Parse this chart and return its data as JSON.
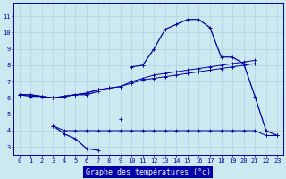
{
  "x": [
    0,
    1,
    2,
    3,
    4,
    5,
    6,
    7,
    8,
    9,
    10,
    11,
    12,
    13,
    14,
    15,
    16,
    17,
    18,
    19,
    20,
    21,
    22,
    23
  ],
  "line1": [
    6.2,
    6.1,
    6.1,
    6.0,
    6.1,
    6.2,
    6.2,
    6.4,
    null,
    null,
    7.9,
    8.0,
    9.0,
    10.2,
    10.5,
    10.8,
    10.8,
    10.3,
    8.5,
    8.5,
    8.1,
    6.1,
    4.0,
    3.7
  ],
  "line2": [
    6.2,
    6.2,
    6.1,
    6.0,
    6.1,
    6.2,
    6.3,
    6.5,
    6.6,
    6.7,
    7.0,
    7.2,
    7.4,
    7.5,
    7.6,
    7.7,
    7.8,
    7.9,
    8.0,
    8.1,
    8.2,
    8.3,
    null,
    null
  ],
  "line3": [
    6.2,
    6.2,
    6.1,
    6.0,
    6.1,
    6.2,
    6.3,
    6.5,
    6.6,
    6.7,
    6.9,
    7.1,
    7.2,
    7.3,
    7.4,
    7.5,
    7.6,
    7.7,
    7.8,
    7.9,
    8.0,
    8.1,
    null,
    null
  ],
  "line4_seg1_x": [
    3,
    4,
    5,
    6,
    7
  ],
  "line4_seg1_y": [
    4.3,
    3.8,
    3.5,
    2.9,
    2.8
  ],
  "line4_seg2_x": [
    9
  ],
  "line4_seg2_y": [
    4.7
  ],
  "line5_x": [
    3,
    4,
    5,
    6,
    7,
    8,
    9,
    10,
    11,
    12,
    13,
    14,
    15,
    16,
    17,
    18,
    19,
    20,
    21,
    22,
    23
  ],
  "line5_y": [
    4.3,
    4.0,
    4.0,
    4.0,
    4.0,
    4.0,
    4.0,
    4.0,
    4.0,
    4.0,
    4.0,
    4.0,
    4.0,
    4.0,
    4.0,
    4.0,
    4.0,
    4.0,
    4.0,
    3.7,
    3.7
  ],
  "bg_color": "#cce8f0",
  "line_color": "#0000aa",
  "grid_color": "#aad4e0",
  "xlabel": "Graphe des températures (°c)",
  "xlabel_bg": "#0000aa",
  "xlabel_fg": "#ffffff",
  "ylim": [
    2.5,
    11.8
  ],
  "xlim": [
    -0.5,
    23.5
  ],
  "yticks": [
    3,
    4,
    5,
    6,
    7,
    8,
    9,
    10,
    11
  ],
  "xticks": [
    0,
    1,
    2,
    3,
    4,
    5,
    6,
    7,
    8,
    9,
    10,
    11,
    12,
    13,
    14,
    15,
    16,
    17,
    18,
    19,
    20,
    21,
    22,
    23
  ]
}
